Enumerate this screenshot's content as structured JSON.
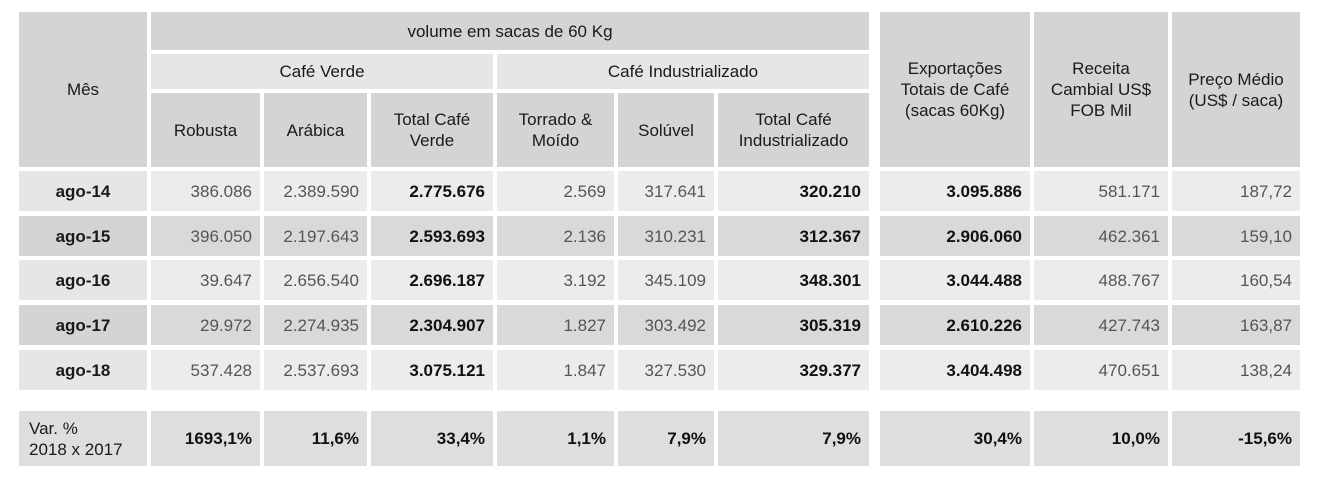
{
  "chart_data": {
    "type": "table",
    "header": {
      "mes": "Mês",
      "volume": "volume em sacas de 60 Kg",
      "cafe_verde": "Café Verde",
      "cafe_industrializado": "Café Industrializado",
      "robusta": "Robusta",
      "arabica": "Arábica",
      "total_verde": "Total Café Verde",
      "torrado": "Torrado & Moído",
      "soluvel": "Solúvel",
      "total_ind": "Total Café Industrializado",
      "exportacoes": "Exportações Totais de Café (sacas 60Kg)",
      "receita": "Receita Cambial US$ FOB Mil",
      "preco": "Preço Médio (US$ / saca)"
    },
    "rows": [
      {
        "mes": "ago-14",
        "robusta": "386.086",
        "arabica": "2.389.590",
        "total_verde": "2.775.676",
        "torrado": "2.569",
        "soluvel": "317.641",
        "total_ind": "320.210",
        "exportacoes": "3.095.886",
        "receita": "581.171",
        "preco": "187,72"
      },
      {
        "mes": "ago-15",
        "robusta": "396.050",
        "arabica": "2.197.643",
        "total_verde": "2.593.693",
        "torrado": "2.136",
        "soluvel": "310.231",
        "total_ind": "312.367",
        "exportacoes": "2.906.060",
        "receita": "462.361",
        "preco": "159,10"
      },
      {
        "mes": "ago-16",
        "robusta": "39.647",
        "arabica": "2.656.540",
        "total_verde": "2.696.187",
        "torrado": "3.192",
        "soluvel": "345.109",
        "total_ind": "348.301",
        "exportacoes": "3.044.488",
        "receita": "488.767",
        "preco": "160,54"
      },
      {
        "mes": "ago-17",
        "robusta": "29.972",
        "arabica": "2.274.935",
        "total_verde": "2.304.907",
        "torrado": "1.827",
        "soluvel": "303.492",
        "total_ind": "305.319",
        "exportacoes": "2.610.226",
        "receita": "427.743",
        "preco": "163,87"
      },
      {
        "mes": "ago-18",
        "robusta": "537.428",
        "arabica": "2.537.693",
        "total_verde": "3.075.121",
        "torrado": "1.847",
        "soluvel": "327.530",
        "total_ind": "329.377",
        "exportacoes": "3.404.498",
        "receita": "470.651",
        "preco": "138,24"
      }
    ],
    "variation": {
      "label_line1": "Var. %",
      "label_line2": "2018 x 2017",
      "robusta": "1693,1%",
      "arabica": "11,6%",
      "total_verde": "33,4%",
      "torrado": "1,1%",
      "soluvel": "7,9%",
      "total_ind": "7,9%",
      "exportacoes": "30,4%",
      "receita": "10,0%",
      "preco": "-15,6%"
    },
    "colors": {
      "header": "#d4d4d4",
      "row_light": "#ececec",
      "row_dark": "#d9d9d9"
    }
  }
}
